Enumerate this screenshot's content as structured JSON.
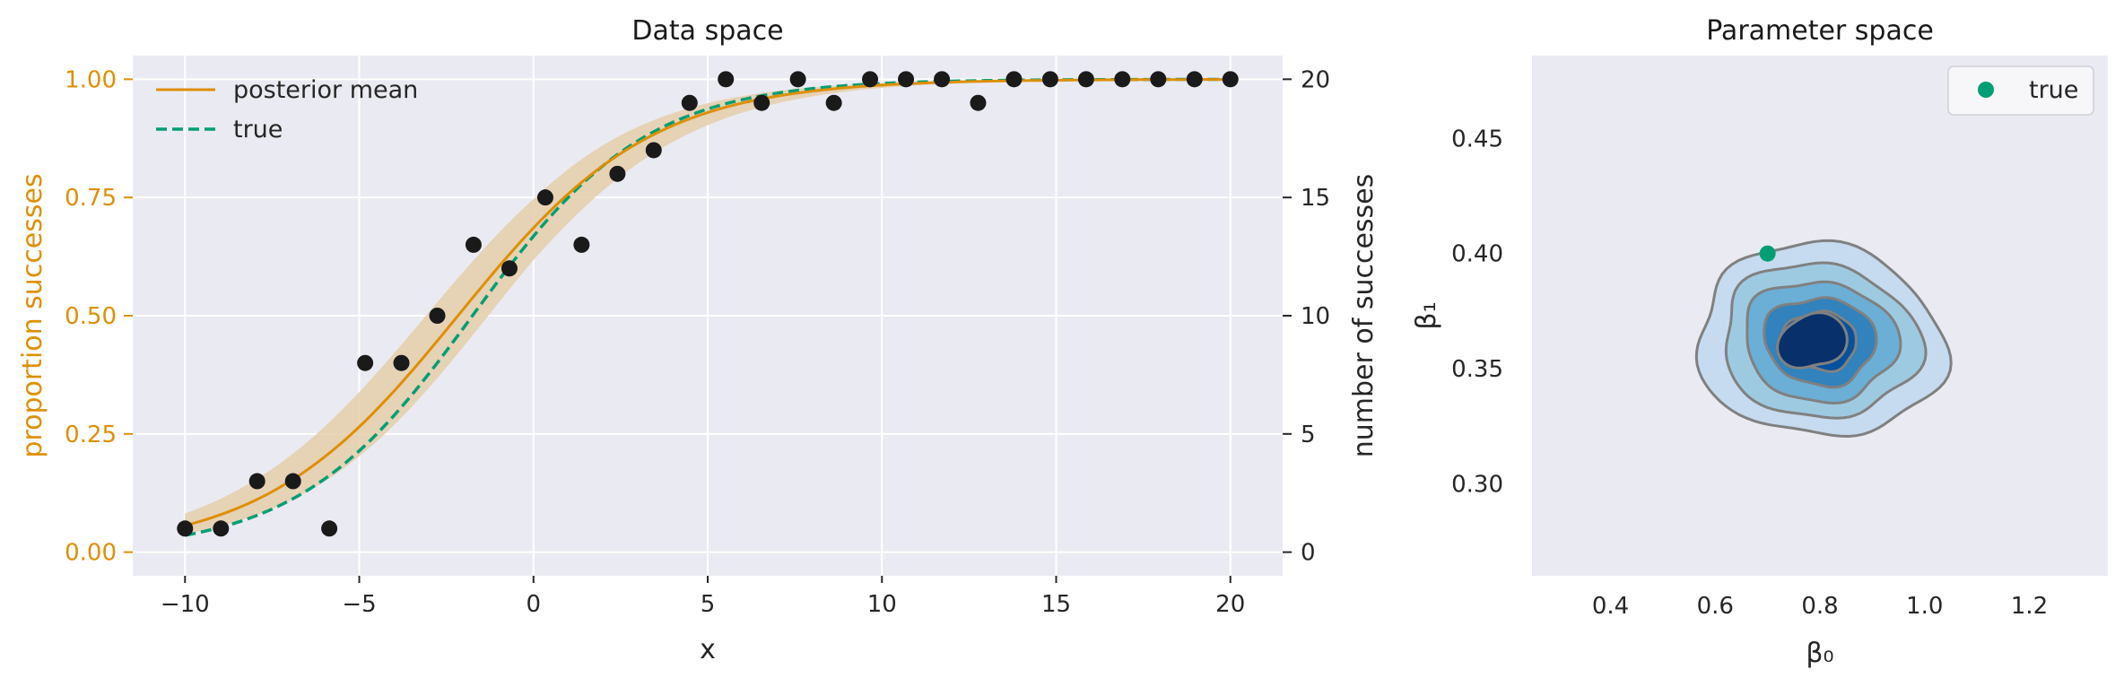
{
  "colors": {
    "orange": "#de8f05",
    "band": "#e5cfae",
    "green": "#029e73",
    "points": "#1a1a1a",
    "panel_bg": "#eaeaf2",
    "grid": "#ffffff",
    "contour_line": "#808080",
    "contour_fills": [
      "#c6dbef",
      "#9ecae1",
      "#6baed6",
      "#3182bd",
      "#08519c",
      "#08306b"
    ]
  },
  "chart_data": [
    {
      "type": "line",
      "title": "Data space",
      "xlabel": "x",
      "ylabel_left": "proportion successes",
      "ylabel_right": "number of successes",
      "xlim": [
        -11.5,
        21.5
      ],
      "ylim_left": [
        -0.05,
        1.05
      ],
      "ylim_right": [
        -1,
        21
      ],
      "xticks": [
        "−10",
        "−5",
        "0",
        "5",
        "10",
        "15",
        "20"
      ],
      "yticks_left": [
        "0.00",
        "0.25",
        "0.50",
        "0.75",
        "1.00"
      ],
      "yticks_right": [
        "0",
        "5",
        "10",
        "15",
        "20"
      ],
      "grid": true,
      "legend": {
        "position": "top-left",
        "entries": [
          {
            "label": "posterior mean",
            "style": "solid",
            "color": "#de8f05"
          },
          {
            "label": "true",
            "style": "dashed",
            "color": "#029e73"
          }
        ]
      },
      "series": [
        {
          "name": "posterior mean",
          "kind": "line",
          "beta0": 0.78,
          "beta1": 0.36,
          "x": [
            -10,
            -8.94,
            -7.89,
            -6.84,
            -5.79,
            -4.74,
            -3.68,
            -2.63,
            -1.58,
            -0.53,
            0.53,
            1.58,
            2.63,
            3.68,
            4.74,
            5.79,
            6.84,
            7.89,
            8.94,
            10,
            11.05,
            12.11,
            13.16,
            14.21,
            15.26,
            16.32,
            17.37,
            18.42,
            19.47,
            20
          ],
          "y": [
            0.058,
            0.082,
            0.113,
            0.155,
            0.208,
            0.273,
            0.35,
            0.436,
            0.526,
            0.614,
            0.696,
            0.767,
            0.826,
            0.873,
            0.909,
            0.936,
            0.955,
            0.969,
            0.978,
            0.985,
            0.99,
            0.993,
            0.995,
            0.997,
            0.998,
            0.998,
            0.999,
            0.999,
            0.999,
            1.0
          ]
        },
        {
          "name": "true",
          "kind": "dashed-line",
          "beta0": 0.7,
          "beta1": 0.4,
          "x": [
            -10,
            -8.94,
            -7.89,
            -6.84,
            -5.79,
            -4.74,
            -3.68,
            -2.63,
            -1.58,
            -0.53,
            0.53,
            1.58,
            2.63,
            3.68,
            4.74,
            5.79,
            6.84,
            7.89,
            8.94,
            10,
            11.05,
            12.11,
            13.16,
            14.21,
            15.26,
            16.32,
            17.37,
            18.42,
            19.47,
            20
          ],
          "y": [
            0.039,
            0.057,
            0.083,
            0.119,
            0.167,
            0.229,
            0.303,
            0.391,
            0.487,
            0.581,
            0.674,
            0.756,
            0.823,
            0.874,
            0.913,
            0.941,
            0.96,
            0.973,
            0.982,
            0.988,
            0.992,
            0.995,
            0.996,
            0.998,
            0.998,
            0.999,
            0.999,
            0.999,
            1.0,
            1.0
          ]
        },
        {
          "name": "posterior band",
          "kind": "band",
          "x": [
            -10,
            -5,
            0,
            5,
            10,
            15,
            20
          ],
          "y_low": [
            0.035,
            0.2,
            0.56,
            0.89,
            0.98,
            0.996,
            1.0
          ],
          "y_high": [
            0.095,
            0.34,
            0.73,
            0.95,
            0.995,
            1.0,
            1.0
          ]
        },
        {
          "name": "observed",
          "kind": "scatter",
          "x": [
            -10,
            -8.97,
            -7.93,
            -6.9,
            -5.86,
            -4.83,
            -3.79,
            -2.76,
            -1.72,
            -0.69,
            0.34,
            1.38,
            2.41,
            3.45,
            4.48,
            5.52,
            6.55,
            7.59,
            8.62,
            9.66,
            10.69,
            11.72,
            12.76,
            13.79,
            14.83,
            15.86,
            16.9,
            17.93,
            18.97,
            20
          ],
          "y": [
            1,
            1,
            3,
            3,
            1,
            8,
            8,
            10,
            13,
            12,
            15,
            13,
            16,
            17,
            19,
            20,
            19,
            20,
            19,
            20,
            20,
            20,
            19,
            20,
            20,
            20,
            20,
            20,
            20,
            20
          ]
        }
      ]
    },
    {
      "type": "contour",
      "title": "Parameter space",
      "xlabel": "β₀",
      "ylabel": "β₁",
      "xlim": [
        0.25,
        1.35
      ],
      "ylim": [
        0.26,
        0.486
      ],
      "xticks": [
        "0.4",
        "0.6",
        "0.8",
        "1.0",
        "1.2"
      ],
      "yticks": [
        "0.30",
        "0.35",
        "0.40",
        "0.45"
      ],
      "grid": false,
      "legend": {
        "position": "top-right",
        "entries": [
          {
            "label": "true",
            "style": "marker",
            "color": "#029e73"
          }
        ]
      },
      "density": {
        "center": [
          0.8,
          0.362
        ],
        "sd": [
          0.105,
          0.0185
        ],
        "correlation": -0.1,
        "levels": 6
      },
      "true_point": {
        "beta0": 0.7,
        "beta1": 0.4
      }
    }
  ]
}
